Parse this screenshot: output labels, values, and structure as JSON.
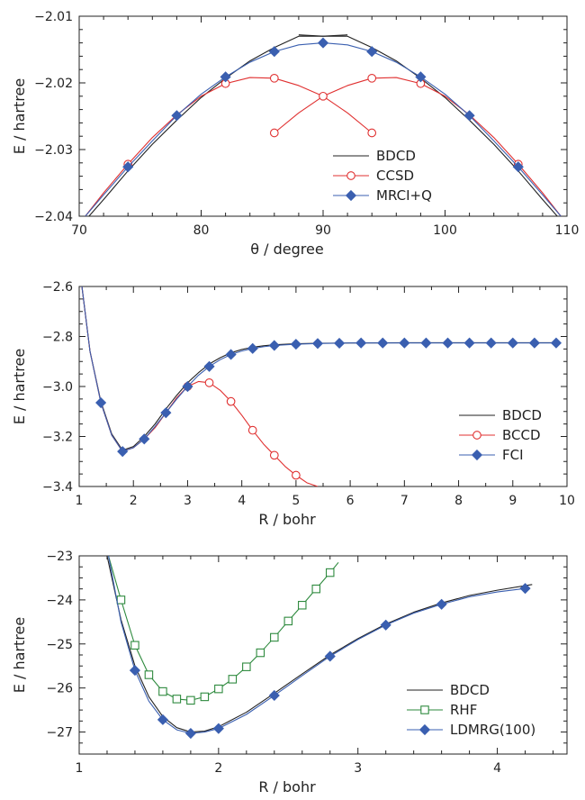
{
  "chart_data": [
    {
      "type": "line",
      "xlabel": "θ / degree",
      "ylabel": "E / hartree",
      "xlim": [
        70,
        110
      ],
      "ylim": [
        -2.04,
        -2.01
      ],
      "xticks": [
        70,
        80,
        90,
        100,
        110
      ],
      "xtick_labels": [
        "70",
        "80",
        "90",
        "100",
        "110"
      ],
      "yticks": [
        -2.04,
        -2.03,
        -2.02,
        -2.01
      ],
      "ytick_labels": [
        "−2.04",
        "−2.03",
        "−2.02",
        "−2.01"
      ],
      "legend_position": "bottom-center",
      "series": [
        {
          "name": "BDCD",
          "color": "#222222",
          "marker": "none",
          "curves": [
            {
              "x": [
                70.8,
                72,
                74,
                76,
                78,
                80,
                82,
                84,
                86,
                88,
                90,
                92
              ],
              "y": [
                -2.04,
                -2.0375,
                -2.0332,
                -2.0292,
                -2.0256,
                -2.0222,
                -2.0193,
                -2.0167,
                -2.0147,
                -2.013,
                -2.013,
                -2.0128
              ]
            },
            {
              "x": [
                88,
                90,
                92,
                94,
                96,
                98,
                100,
                102,
                104,
                106,
                108,
                109.2
              ],
              "y": [
                -2.0128,
                -2.013,
                -2.013,
                -2.0147,
                -2.0167,
                -2.0193,
                -2.0222,
                -2.0256,
                -2.0292,
                -2.0332,
                -2.0375,
                -2.04
              ]
            }
          ],
          "points": {
            "x": [],
            "y": []
          }
        },
        {
          "name": "CCSD",
          "color": "#e03030",
          "marker": "circle-open",
          "curves": [
            {
              "x": [
                70.5,
                72,
                74,
                76,
                78,
                80,
                82,
                84,
                86,
                88,
                90,
                92,
                94
              ],
              "y": [
                -2.04,
                -2.0365,
                -2.0322,
                -2.0282,
                -2.0248,
                -2.022,
                -2.0201,
                -2.0192,
                -2.0193,
                -2.0204,
                -2.022,
                -2.0245,
                -2.0275
              ]
            },
            {
              "x": [
                86,
                88,
                90,
                92,
                94,
                96,
                98,
                100,
                102,
                104,
                106,
                108,
                109.5
              ],
              "y": [
                -2.0275,
                -2.0245,
                -2.022,
                -2.0204,
                -2.0193,
                -2.0192,
                -2.0201,
                -2.022,
                -2.0248,
                -2.0282,
                -2.0322,
                -2.0365,
                -2.04
              ]
            }
          ],
          "points": {
            "x": [
              74,
              82,
              86,
              86,
              90,
              94,
              94,
              98,
              106
            ],
            "y": [
              -2.0322,
              -2.0201,
              -2.0193,
              -2.0275,
              -2.022,
              -2.0193,
              -2.0275,
              -2.0201,
              -2.0322
            ]
          }
        },
        {
          "name": "MRCI+Q",
          "color": "#3a5fb0",
          "marker": "diamond",
          "curves": [
            {
              "x": [
                70.5,
                72,
                74,
                76,
                78,
                80,
                82,
                84,
                86,
                88,
                90,
                92,
                94,
                96,
                98,
                100,
                102,
                104,
                106,
                108,
                109.5
              ],
              "y": [
                -2.04,
                -2.0368,
                -2.0326,
                -2.0287,
                -2.0249,
                -2.0217,
                -2.0191,
                -2.0169,
                -2.0153,
                -2.0143,
                -2.014,
                -2.0143,
                -2.0153,
                -2.0169,
                -2.0191,
                -2.0217,
                -2.0249,
                -2.0287,
                -2.0326,
                -2.0368,
                -2.04
              ]
            }
          ],
          "points": {
            "x": [
              74,
              78,
              82,
              86,
              90,
              94,
              98,
              102,
              106
            ],
            "y": [
              -2.0326,
              -2.0249,
              -2.0191,
              -2.0153,
              -2.014,
              -2.0153,
              -2.0191,
              -2.0249,
              -2.0326
            ]
          }
        }
      ]
    },
    {
      "type": "line",
      "xlabel": "R / bohr",
      "ylabel": "E / hartree",
      "xlim": [
        1,
        10
      ],
      "ylim": [
        -3.4,
        -2.6
      ],
      "xticks": [
        1,
        2,
        3,
        4,
        5,
        6,
        7,
        8,
        9,
        10
      ],
      "xtick_labels": [
        "1",
        "2",
        "3",
        "4",
        "5",
        "6",
        "7",
        "8",
        "9",
        "10"
      ],
      "yticks": [
        -3.4,
        -3.2,
        -3.0,
        -2.8,
        -2.6
      ],
      "ytick_labels": [
        "−3.4",
        "−3.2",
        "−3.0",
        "−2.8",
        "−2.6"
      ],
      "legend_position": "bottom-right",
      "series": [
        {
          "name": "BDCD",
          "color": "#222222",
          "marker": "none",
          "curves": [
            {
              "x": [
                1.05,
                1.2,
                1.4,
                1.6,
                1.8,
                2.0,
                2.2,
                2.4,
                2.6,
                2.8,
                3.0,
                3.2,
                3.4,
                3.6,
                3.8,
                4.0,
                4.2,
                4.4,
                4.6,
                5.0,
                5.4,
                6.0,
                7.0,
                8.0,
                9.0,
                9.8
              ],
              "y": [
                -2.6,
                -2.86,
                -3.06,
                -3.19,
                -3.255,
                -3.24,
                -3.2,
                -3.15,
                -3.09,
                -3.035,
                -2.985,
                -2.945,
                -2.91,
                -2.885,
                -2.865,
                -2.852,
                -2.843,
                -2.837,
                -2.833,
                -2.829,
                -2.827,
                -2.826,
                -2.825,
                -2.825,
                -2.825,
                -2.825
              ]
            }
          ],
          "points": {
            "x": [],
            "y": []
          }
        },
        {
          "name": "BCCD",
          "color": "#e03030",
          "marker": "circle-open",
          "curves": [
            {
              "x": [
                1.05,
                1.2,
                1.4,
                1.6,
                1.8,
                2.0,
                2.2,
                2.4,
                2.6,
                2.8,
                3.0,
                3.2,
                3.4,
                3.6,
                3.8,
                4.0,
                4.2,
                4.4,
                4.6,
                4.8,
                5.0,
                5.2,
                5.4
              ],
              "y": [
                -2.6,
                -2.86,
                -3.065,
                -3.195,
                -3.26,
                -3.245,
                -3.21,
                -3.165,
                -3.105,
                -3.045,
                -3.0,
                -2.98,
                -2.985,
                -3.015,
                -3.06,
                -3.115,
                -3.175,
                -3.23,
                -3.275,
                -3.32,
                -3.355,
                -3.385,
                -3.4
              ]
            }
          ],
          "points": {
            "x": [
              3.0,
              3.4,
              3.8,
              4.2,
              4.6,
              5.0
            ],
            "y": [
              -3.0,
              -2.985,
              -3.06,
              -3.175,
              -3.275,
              -3.355
            ]
          }
        },
        {
          "name": "FCI",
          "color": "#3a5fb0",
          "marker": "diamond",
          "curves": [
            {
              "x": [
                1.05,
                1.2,
                1.4,
                1.6,
                1.8,
                2.0,
                2.2,
                2.4,
                2.6,
                2.8,
                3.0,
                3.2,
                3.4,
                3.6,
                3.8,
                4.0,
                4.2,
                4.4,
                4.6,
                5.0,
                5.4,
                6.0,
                7.0,
                8.0,
                9.0,
                9.8
              ],
              "y": [
                -2.6,
                -2.86,
                -3.065,
                -3.195,
                -3.26,
                -3.245,
                -3.21,
                -3.16,
                -3.105,
                -3.05,
                -3.0,
                -2.955,
                -2.92,
                -2.893,
                -2.872,
                -2.858,
                -2.848,
                -2.841,
                -2.836,
                -2.831,
                -2.828,
                -2.826,
                -2.826,
                -2.826,
                -2.826,
                -2.826
              ]
            }
          ],
          "points": {
            "x": [
              1.4,
              1.8,
              2.2,
              2.6,
              3.0,
              3.4,
              3.8,
              4.2,
              4.6,
              5.0,
              5.4,
              5.8,
              6.2,
              6.6,
              7.0,
              7.4,
              7.8,
              8.2,
              8.6,
              9.0,
              9.4,
              9.8
            ],
            "y": [
              -3.065,
              -3.26,
              -3.21,
              -3.105,
              -3.0,
              -2.92,
              -2.872,
              -2.848,
              -2.836,
              -2.831,
              -2.828,
              -2.827,
              -2.826,
              -2.826,
              -2.826,
              -2.826,
              -2.826,
              -2.826,
              -2.826,
              -2.826,
              -2.826,
              -2.826
            ]
          }
        }
      ]
    },
    {
      "type": "line",
      "xlabel": "R / bohr",
      "ylabel": "E / hartree",
      "xlim": [
        1,
        4.5
      ],
      "ylim": [
        -27.5,
        -23
      ],
      "xticks": [
        1,
        2,
        3,
        4
      ],
      "xtick_labels": [
        "1",
        "2",
        "3",
        "4"
      ],
      "yticks": [
        -27,
        -26,
        -25,
        -24,
        -23
      ],
      "ytick_labels": [
        "−27",
        "−26",
        "−25",
        "−24",
        "−23"
      ],
      "legend_position": "bottom-right",
      "series": [
        {
          "name": "BDCD",
          "color": "#222222",
          "marker": "none",
          "curves": [
            {
              "x": [
                1.2,
                1.3,
                1.4,
                1.5,
                1.6,
                1.7,
                1.8,
                1.9,
                2.0,
                2.2,
                2.4,
                2.6,
                2.8,
                3.0,
                3.2,
                3.4,
                3.6,
                3.8,
                4.0,
                4.25
              ],
              "y": [
                -23.0,
                -24.45,
                -25.5,
                -26.2,
                -26.65,
                -26.9,
                -27.0,
                -26.98,
                -26.88,
                -26.55,
                -26.12,
                -25.68,
                -25.25,
                -24.88,
                -24.55,
                -24.28,
                -24.07,
                -23.9,
                -23.78,
                -23.65
              ]
            }
          ],
          "points": {
            "x": [],
            "y": []
          }
        },
        {
          "name": "RHF",
          "color": "#2e8a3e",
          "marker": "square-open",
          "curves": [
            {
              "x": [
                1.21,
                1.3,
                1.4,
                1.5,
                1.6,
                1.7,
                1.8,
                1.9,
                2.0,
                2.1,
                2.2,
                2.3,
                2.4,
                2.5,
                2.6,
                2.7,
                2.8,
                2.86
              ],
              "y": [
                -23.0,
                -24.0,
                -25.03,
                -25.7,
                -26.08,
                -26.25,
                -26.28,
                -26.2,
                -26.02,
                -25.8,
                -25.52,
                -25.2,
                -24.85,
                -24.48,
                -24.12,
                -23.75,
                -23.38,
                -23.15
              ]
            }
          ],
          "points": {
            "x": [
              1.3,
              1.4,
              1.5,
              1.6,
              1.7,
              1.8,
              1.9,
              2.0,
              2.1,
              2.2,
              2.3,
              2.4,
              2.5,
              2.6,
              2.7,
              2.8
            ],
            "y": [
              -24.0,
              -25.03,
              -25.7,
              -26.08,
              -26.25,
              -26.28,
              -26.2,
              -26.02,
              -25.8,
              -25.52,
              -25.2,
              -24.85,
              -24.48,
              -24.12,
              -23.75,
              -23.38
            ]
          }
        },
        {
          "name": "LDMRG(100)",
          "color": "#3a5fb0",
          "marker": "diamond",
          "curves": [
            {
              "x": [
                1.21,
                1.3,
                1.4,
                1.5,
                1.6,
                1.7,
                1.8,
                1.9,
                2.0,
                2.2,
                2.4,
                2.6,
                2.8,
                3.0,
                3.2,
                3.4,
                3.6,
                3.8,
                4.0,
                4.2
              ],
              "y": [
                -23.0,
                -24.5,
                -25.6,
                -26.3,
                -26.72,
                -26.95,
                -27.03,
                -27.0,
                -26.92,
                -26.6,
                -26.17,
                -25.72,
                -25.28,
                -24.9,
                -24.57,
                -24.3,
                -24.1,
                -23.93,
                -23.82,
                -23.74
              ]
            }
          ],
          "points": {
            "x": [
              1.4,
              1.6,
              1.8,
              2.0,
              2.4,
              2.8,
              3.2,
              3.6,
              4.2
            ],
            "y": [
              -25.6,
              -26.72,
              -27.03,
              -26.92,
              -26.17,
              -25.28,
              -24.57,
              -24.1,
              -23.74
            ]
          }
        }
      ]
    }
  ]
}
